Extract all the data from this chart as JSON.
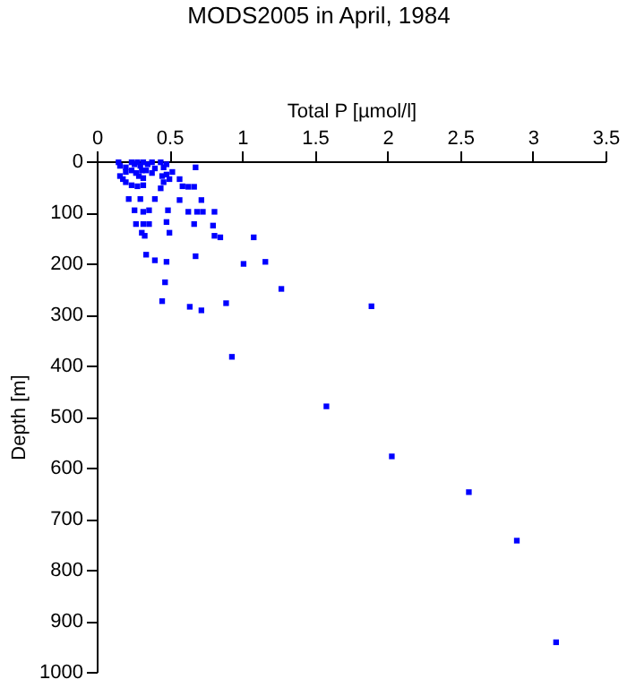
{
  "chart_data": {
    "type": "scatter",
    "title": "MODS2005 in April, 1984",
    "xlabel": "Total P [µmol/l]",
    "ylabel": "Depth [m]",
    "x": [
      0.15,
      0.16,
      0.2,
      0.24,
      0.26,
      0.28,
      0.3,
      0.32,
      0.35,
      0.38,
      0.44,
      0.48,
      0.68,
      0.2,
      0.24,
      0.27,
      0.31,
      0.34,
      0.4,
      0.46,
      0.29,
      0.32,
      0.38,
      0.45,
      0.48,
      0.52,
      0.16,
      0.18,
      0.2,
      0.24,
      0.28,
      0.32,
      0.46,
      0.5,
      0.57,
      0.59,
      0.63,
      0.67,
      0.44,
      0.22,
      0.3,
      0.4,
      0.57,
      0.72,
      0.26,
      0.32,
      0.36,
      0.49,
      0.63,
      0.69,
      0.73,
      0.81,
      0.27,
      0.32,
      0.36,
      0.48,
      0.67,
      0.8,
      0.31,
      0.33,
      0.5,
      0.81,
      0.85,
      1.08,
      0.34,
      0.4,
      0.48,
      0.68,
      1.01,
      1.16,
      0.47,
      1.27,
      0.45,
      0.64,
      0.72,
      0.89,
      1.89,
      0.93,
      1.58,
      2.03,
      2.56,
      2.89,
      3.16
    ],
    "series": [
      {
        "color": "#0000ff",
        "values": [
          2,
          9,
          12,
          2,
          6,
          2,
          9,
          2,
          6,
          2,
          2,
          6,
          12,
          21,
          18,
          23,
          18,
          18,
          14,
          12,
          29,
          33,
          23,
          29,
          26,
          21,
          29,
          35,
          41,
          47,
          49,
          47,
          41,
          35,
          35,
          49,
          50,
          50,
          53,
          74,
          74,
          74,
          76,
          76,
          96,
          99,
          96,
          96,
          99,
          99,
          99,
          99,
          123,
          123,
          123,
          119,
          123,
          126,
          140,
          146,
          140,
          146,
          149,
          149,
          183,
          194,
          197,
          186,
          201,
          197,
          237,
          250,
          274,
          285,
          292,
          278,
          284,
          383,
          480,
          578,
          648,
          743,
          942
        ]
      }
    ],
    "xlim": [
      0,
      3.5
    ],
    "xticks": [
      0,
      0.5,
      1,
      1.5,
      2,
      2.5,
      3,
      3.5
    ],
    "ylim": [
      1000,
      0
    ],
    "yticks": [
      0,
      100,
      200,
      300,
      400,
      500,
      600,
      700,
      800,
      900,
      1000
    ],
    "marker": "square",
    "grid": false
  }
}
